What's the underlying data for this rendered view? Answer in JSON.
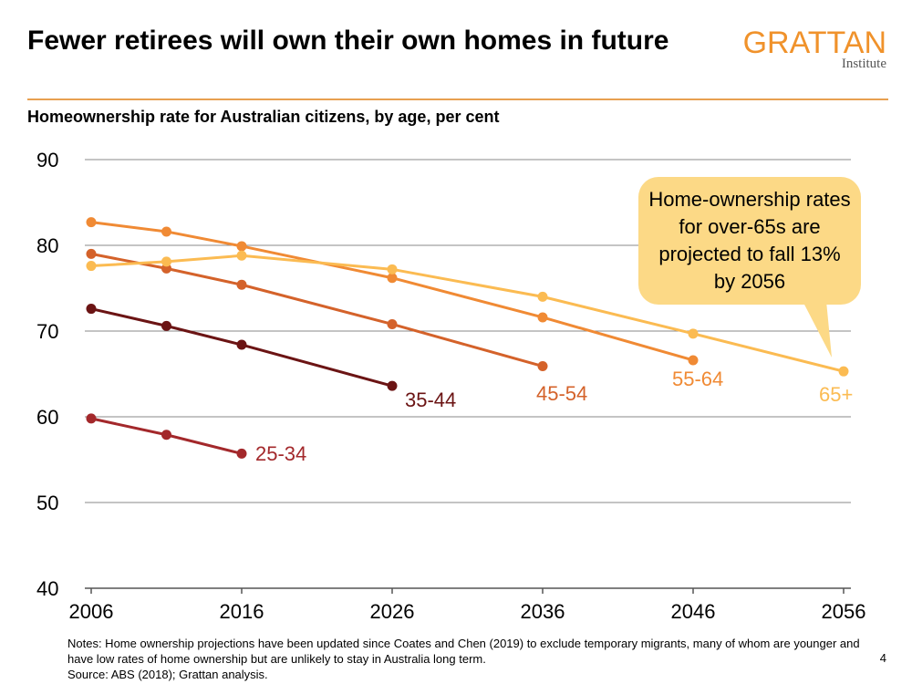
{
  "header": {
    "title": "Fewer retirees will own their own homes in future",
    "logo_word": "GRATTAN",
    "logo_sub": "Institute"
  },
  "colors": {
    "accent": "#e8a050",
    "callout_bg": "#fcd986",
    "gridline": "#888888"
  },
  "callout": {
    "text": "Home-ownership rates for over-65s are projected to fall 13% by 2056"
  },
  "chart_data": {
    "type": "line",
    "title": "",
    "subtitle": "Homeownership rate for Australian citizens, by age, per cent",
    "xlabel": "",
    "ylabel": "",
    "xlim": [
      2006,
      2056
    ],
    "ylim": [
      40,
      90
    ],
    "x_ticks": [
      2006,
      2016,
      2026,
      2036,
      2046,
      2056
    ],
    "y_ticks": [
      40,
      50,
      60,
      70,
      80,
      90
    ],
    "grid": true,
    "series": [
      {
        "name": "25-34",
        "color": "#a3282b",
        "points": [
          [
            2006,
            59.8
          ],
          [
            2011,
            57.9
          ],
          [
            2016,
            55.7
          ]
        ]
      },
      {
        "name": "35-44",
        "color": "#6b1414",
        "points": [
          [
            2006,
            72.6
          ],
          [
            2011,
            70.6
          ],
          [
            2016,
            68.4
          ],
          [
            2026,
            63.6
          ]
        ]
      },
      {
        "name": "45-54",
        "color": "#d4622a",
        "points": [
          [
            2006,
            79.0
          ],
          [
            2011,
            77.3
          ],
          [
            2016,
            75.4
          ],
          [
            2026,
            70.8
          ],
          [
            2036,
            65.9
          ]
        ]
      },
      {
        "name": "55-64",
        "color": "#f08a34",
        "points": [
          [
            2006,
            82.7
          ],
          [
            2011,
            81.6
          ],
          [
            2016,
            79.9
          ],
          [
            2026,
            76.2
          ],
          [
            2036,
            71.6
          ],
          [
            2046,
            66.6
          ]
        ]
      },
      {
        "name": "65+",
        "color": "#fbbb52",
        "points": [
          [
            2006,
            77.6
          ],
          [
            2011,
            78.1
          ],
          [
            2016,
            78.8
          ],
          [
            2026,
            77.2
          ],
          [
            2036,
            74.0
          ],
          [
            2046,
            69.7
          ],
          [
            2056,
            65.3
          ]
        ]
      }
    ]
  },
  "footer": {
    "notes": "Notes: Home ownership projections have been updated since Coates and Chen (2019) to exclude temporary migrants, many of whom are younger and have low rates of home ownership but are unlikely to stay in Australia long term.",
    "source": "Source: ABS (2018); Grattan analysis.",
    "page_number": "4"
  }
}
